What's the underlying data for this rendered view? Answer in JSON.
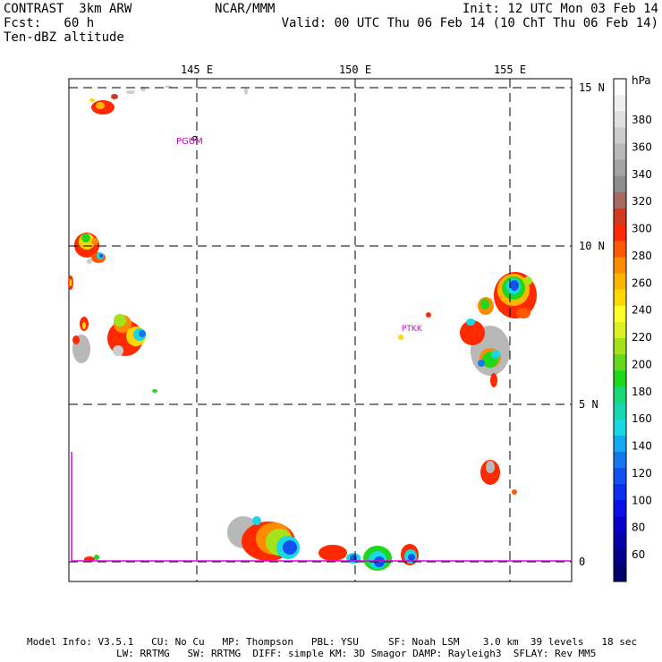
{
  "header": {
    "model": "CONTRAST  3km ARW",
    "forecast": "Fcst:   60 h",
    "field": "Ten-dBZ altitude",
    "center": "NCAR/MMM",
    "init": "Init: 12 UTC Mon 03 Feb 14",
    "valid": "Valid: 00 UTC Thu 06 Feb 14 (10 ChT Thu 06 Feb 14)"
  },
  "map": {
    "lon_labels": [
      "145 E",
      "150 E",
      "155 E"
    ],
    "lat_labels": [
      "15 N",
      "10 N",
      "5 N",
      "0"
    ],
    "stations": [
      "PGUM",
      "PTKK"
    ]
  },
  "colorbar": {
    "unit": "hPa",
    "labels": [
      "380",
      "360",
      "340",
      "320",
      "300",
      "280",
      "260",
      "240",
      "220",
      "200",
      "180",
      "160",
      "140",
      "120",
      "100",
      "80",
      "60"
    ],
    "colors": [
      "#ffffff",
      "#f0f0f0",
      "#e0e0e0",
      "#cccccc",
      "#b8b8b8",
      "#a4a4a4",
      "#8e8e8e",
      "#a86a5e",
      "#d23a1e",
      "#ff2a00",
      "#ff5800",
      "#ff8c00",
      "#ffb400",
      "#ffd800",
      "#ffff28",
      "#dcf020",
      "#a4e31a",
      "#66d81a",
      "#1ed81e",
      "#18d878",
      "#18d8b4",
      "#18d8e4",
      "#16a8f0",
      "#1478f0",
      "#1250f0",
      "#0c2cf0",
      "#0a10e8",
      "#0800c8",
      "#0600a8",
      "#04008a",
      "#00006c"
    ]
  },
  "footer": {
    "line1": "Model Info: V3.5.1   CU: No Cu   MP: Thompson   PBL: YSU     SF: Noah LSM    3.0 km  39 levels   18 sec",
    "line2": "LW: RRTMG   SW: RRTMG  DIFF: simple KM: 3D Smagor DAMP: Rayleigh3  SFLAY: Rev MM5"
  }
}
